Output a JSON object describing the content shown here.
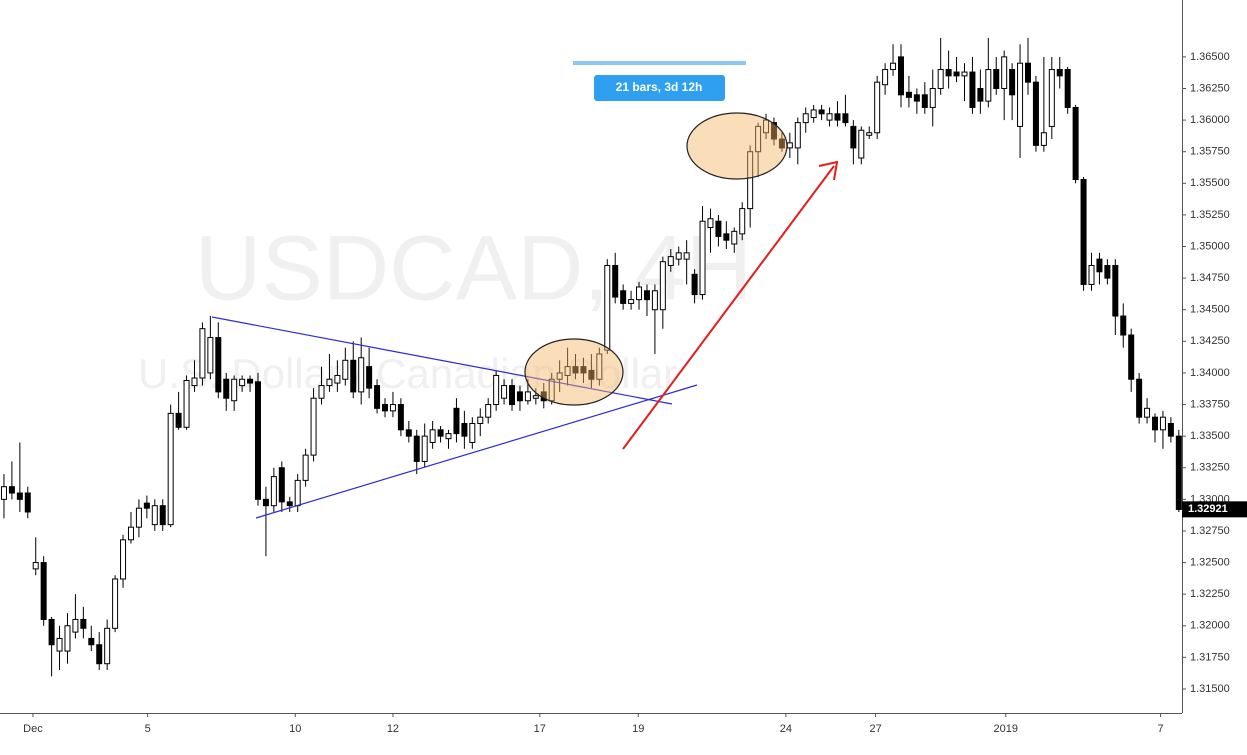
{
  "chart_data": {
    "type": "candlestick",
    "title": "USDCAD, 4H",
    "subtitle": "U.S. Dollar / Canadian Dollar",
    "measure_label": "21 bars, 3d 12h",
    "last_price": {
      "value": 1.32921,
      "label": "1.32921"
    },
    "up_color": "#ffffff",
    "down_color": "#000000",
    "wick_color": "#000000",
    "xlim": [
      -0.5,
      148.4
    ],
    "xticks": [
      {
        "value": 3.65,
        "label": "Dec"
      },
      {
        "value": 18.1,
        "label": "5"
      },
      {
        "value": 36.7,
        "label": "10"
      },
      {
        "value": 49.0,
        "label": "12"
      },
      {
        "value": 67.5,
        "label": "17"
      },
      {
        "value": 79.9,
        "label": "19"
      },
      {
        "value": 98.5,
        "label": "24"
      },
      {
        "value": 109.8,
        "label": "27"
      },
      {
        "value": 126.2,
        "label": "2019"
      },
      {
        "value": 145.7,
        "label": "7"
      }
    ],
    "ylim": [
      1.3131,
      1.3695
    ],
    "yticks": [
      {
        "value": 1.315,
        "label": "1.31500"
      },
      {
        "value": 1.3175,
        "label": "1.31750"
      },
      {
        "value": 1.32,
        "label": "1.32000"
      },
      {
        "value": 1.3225,
        "label": "1.32250"
      },
      {
        "value": 1.325,
        "label": "1.32500"
      },
      {
        "value": 1.3275,
        "label": "1.32750"
      },
      {
        "value": 1.33,
        "label": "1.33000"
      },
      {
        "value": 1.3325,
        "label": "1.33250"
      },
      {
        "value": 1.335,
        "label": "1.33500"
      },
      {
        "value": 1.3375,
        "label": "1.33750"
      },
      {
        "value": 1.34,
        "label": "1.34000"
      },
      {
        "value": 1.3425,
        "label": "1.34250"
      },
      {
        "value": 1.345,
        "label": "1.34500"
      },
      {
        "value": 1.3475,
        "label": "1.34750"
      },
      {
        "value": 1.35,
        "label": "1.35000"
      },
      {
        "value": 1.3525,
        "label": "1.35250"
      },
      {
        "value": 1.355,
        "label": "1.35500"
      },
      {
        "value": 1.3575,
        "label": "1.35750"
      },
      {
        "value": 1.36,
        "label": "1.36000"
      },
      {
        "value": 1.3625,
        "label": "1.36250"
      },
      {
        "value": 1.365,
        "label": "1.36500"
      }
    ],
    "ohlc": [
      [
        1.33,
        1.332,
        1.3285,
        1.331
      ],
      [
        1.331,
        1.333,
        1.33,
        1.3305
      ],
      [
        1.3305,
        1.3345,
        1.329,
        1.33
      ],
      [
        1.3305,
        1.331,
        1.3285,
        1.329
      ],
      [
        1.3245,
        1.327,
        1.324,
        1.325
      ],
      [
        1.325,
        1.3255,
        1.32,
        1.3205
      ],
      [
        1.3205,
        1.3207,
        1.316,
        1.3185
      ],
      [
        1.318,
        1.32,
        1.3165,
        1.319
      ],
      [
        1.318,
        1.321,
        1.317,
        1.32
      ],
      [
        1.3195,
        1.3225,
        1.319,
        1.3205
      ],
      [
        1.3205,
        1.3215,
        1.319,
        1.3198
      ],
      [
        1.319,
        1.32,
        1.318,
        1.3185
      ],
      [
        1.3185,
        1.3195,
        1.3165,
        1.317
      ],
      [
        1.317,
        1.3205,
        1.3165,
        1.3198
      ],
      [
        1.3198,
        1.324,
        1.3195,
        1.3237
      ],
      [
        1.3237,
        1.3272,
        1.323,
        1.3268
      ],
      [
        1.3268,
        1.329,
        1.3265,
        1.3278
      ],
      [
        1.3278,
        1.33,
        1.327,
        1.3293
      ],
      [
        1.3297,
        1.3303,
        1.3285,
        1.3293
      ],
      [
        1.328,
        1.33,
        1.3275,
        1.3295
      ],
      [
        1.3295,
        1.33,
        1.3275,
        1.328
      ],
      [
        1.328,
        1.3375,
        1.3278,
        1.3368
      ],
      [
        1.3368,
        1.3385,
        1.3355,
        1.3357
      ],
      [
        1.3357,
        1.3398,
        1.3355,
        1.3394
      ],
      [
        1.339,
        1.341,
        1.3385,
        1.3396
      ],
      [
        1.3396,
        1.344,
        1.339,
        1.3435
      ],
      [
        1.34,
        1.3445,
        1.3395,
        1.3428
      ],
      [
        1.3428,
        1.344,
        1.338,
        1.3385
      ],
      [
        1.3395,
        1.34,
        1.337,
        1.338
      ],
      [
        1.3378,
        1.3398,
        1.337,
        1.3395
      ],
      [
        1.339,
        1.3398,
        1.3385,
        1.3395
      ],
      [
        1.3395,
        1.3398,
        1.3385,
        1.3392
      ],
      [
        1.3393,
        1.34,
        1.3295,
        1.33
      ],
      [
        1.33,
        1.331,
        1.3255,
        1.3295
      ],
      [
        1.3295,
        1.3325,
        1.329,
        1.3318
      ],
      [
        1.3325,
        1.333,
        1.329,
        1.3298
      ],
      [
        1.3298,
        1.3302,
        1.329,
        1.3295
      ],
      [
        1.3295,
        1.332,
        1.329,
        1.3315
      ],
      [
        1.3315,
        1.334,
        1.331,
        1.3335
      ],
      [
        1.3335,
        1.3388,
        1.333,
        1.338
      ],
      [
        1.338,
        1.3405,
        1.3375,
        1.339
      ],
      [
        1.339,
        1.3415,
        1.3385,
        1.3395
      ],
      [
        1.3392,
        1.341,
        1.3385,
        1.3398
      ],
      [
        1.3395,
        1.342,
        1.339,
        1.341
      ],
      [
        1.341,
        1.3425,
        1.338,
        1.3385
      ],
      [
        1.3385,
        1.3428,
        1.3375,
        1.3412
      ],
      [
        1.3405,
        1.342,
        1.338,
        1.3388
      ],
      [
        1.339,
        1.3395,
        1.3368,
        1.3372
      ],
      [
        1.3375,
        1.338,
        1.3365,
        1.337
      ],
      [
        1.337,
        1.3385,
        1.3365,
        1.3375
      ],
      [
        1.3375,
        1.338,
        1.335,
        1.3355
      ],
      [
        1.3355,
        1.3362,
        1.3345,
        1.335
      ],
      [
        1.335,
        1.3355,
        1.332,
        1.333
      ],
      [
        1.333,
        1.336,
        1.3325,
        1.335
      ],
      [
        1.3345,
        1.3362,
        1.334,
        1.3355
      ],
      [
        1.3355,
        1.3358,
        1.3345,
        1.335
      ],
      [
        1.3348,
        1.3355,
        1.334,
        1.3352
      ],
      [
        1.3372,
        1.338,
        1.3345,
        1.3352
      ],
      [
        1.336,
        1.337,
        1.334,
        1.335
      ],
      [
        1.3345,
        1.3365,
        1.334,
        1.336
      ],
      [
        1.336,
        1.3372,
        1.335,
        1.3365
      ],
      [
        1.3365,
        1.338,
        1.336,
        1.3375
      ],
      [
        1.3375,
        1.3402,
        1.337,
        1.3398
      ],
      [
        1.338,
        1.3395,
        1.3375,
        1.339
      ],
      [
        1.339,
        1.3395,
        1.337,
        1.3375
      ],
      [
        1.3385,
        1.339,
        1.337,
        1.3378
      ],
      [
        1.3378,
        1.3395,
        1.3375,
        1.3385
      ],
      [
        1.338,
        1.3388,
        1.3375,
        1.3382
      ],
      [
        1.3385,
        1.3392,
        1.3372,
        1.3378
      ],
      [
        1.3378,
        1.34,
        1.3375,
        1.3395
      ],
      [
        1.3395,
        1.341,
        1.3385,
        1.34
      ],
      [
        1.3398,
        1.342,
        1.339,
        1.3405
      ],
      [
        1.3405,
        1.3415,
        1.3395,
        1.34
      ],
      [
        1.3405,
        1.3412,
        1.3392,
        1.34
      ],
      [
        1.3402,
        1.3415,
        1.3388,
        1.3395
      ],
      [
        1.3395,
        1.342,
        1.339,
        1.3415
      ],
      [
        1.3418,
        1.349,
        1.3415,
        1.3485
      ],
      [
        1.3485,
        1.3495,
        1.3455,
        1.346
      ],
      [
        1.3465,
        1.347,
        1.345,
        1.3455
      ],
      [
        1.3455,
        1.3465,
        1.345,
        1.3458
      ],
      [
        1.3458,
        1.3472,
        1.345,
        1.3468
      ],
      [
        1.3465,
        1.347,
        1.3445,
        1.3458
      ],
      [
        1.345,
        1.347,
        1.3415,
        1.3465
      ],
      [
        1.345,
        1.3492,
        1.3435,
        1.3488
      ],
      [
        1.3485,
        1.3498,
        1.348,
        1.3492
      ],
      [
        1.349,
        1.35,
        1.3485,
        1.3495
      ],
      [
        1.349,
        1.3505,
        1.347,
        1.3495
      ],
      [
        1.3478,
        1.3482,
        1.3455,
        1.3462
      ],
      [
        1.3462,
        1.3532,
        1.3458,
        1.352
      ],
      [
        1.3515,
        1.353,
        1.3495,
        1.3522
      ],
      [
        1.352,
        1.3525,
        1.35,
        1.3508
      ],
      [
        1.351,
        1.352,
        1.3498,
        1.3505
      ],
      [
        1.3502,
        1.3515,
        1.3495,
        1.3512
      ],
      [
        1.351,
        1.3535,
        1.3505,
        1.353
      ],
      [
        1.353,
        1.358,
        1.3515,
        1.3575
      ],
      [
        1.3575,
        1.3598,
        1.3555,
        1.3595
      ],
      [
        1.359,
        1.3605,
        1.3585,
        1.36
      ],
      [
        1.3598,
        1.3602,
        1.358,
        1.3585
      ],
      [
        1.3585,
        1.359,
        1.3575,
        1.3578
      ],
      [
        1.3578,
        1.359,
        1.357,
        1.3582
      ],
      [
        1.3578,
        1.3602,
        1.3565,
        1.3598
      ],
      [
        1.3598,
        1.361,
        1.359,
        1.3605
      ],
      [
        1.3602,
        1.3612,
        1.3598,
        1.3608
      ],
      [
        1.3608,
        1.3612,
        1.36,
        1.3605
      ],
      [
        1.36,
        1.361,
        1.3595,
        1.3605
      ],
      [
        1.3605,
        1.3615,
        1.3595,
        1.36
      ],
      [
        1.3605,
        1.362,
        1.3595,
        1.3598
      ],
      [
        1.3595,
        1.36,
        1.3565,
        1.3578
      ],
      [
        1.357,
        1.3595,
        1.3565,
        1.3592
      ],
      [
        1.3588,
        1.3595,
        1.3585,
        1.359
      ],
      [
        1.359,
        1.3635,
        1.3585,
        1.363
      ],
      [
        1.3628,
        1.3645,
        1.362,
        1.364
      ],
      [
        1.364,
        1.366,
        1.3635,
        1.3645
      ],
      [
        1.365,
        1.366,
        1.361,
        1.362
      ],
      [
        1.3622,
        1.3635,
        1.361,
        1.3618
      ],
      [
        1.362,
        1.3625,
        1.3605,
        1.3615
      ],
      [
        1.362,
        1.363,
        1.3605,
        1.361
      ],
      [
        1.361,
        1.364,
        1.3595,
        1.3625
      ],
      [
        1.3625,
        1.3665,
        1.362,
        1.364
      ],
      [
        1.364,
        1.3655,
        1.3625,
        1.3635
      ],
      [
        1.3638,
        1.365,
        1.363,
        1.3635
      ],
      [
        1.3635,
        1.3645,
        1.3615,
        1.3638
      ],
      [
        1.3638,
        1.365,
        1.3605,
        1.361
      ],
      [
        1.3625,
        1.364,
        1.3605,
        1.3615
      ],
      [
        1.3615,
        1.3665,
        1.361,
        1.364
      ],
      [
        1.364,
        1.365,
        1.362,
        1.3625
      ],
      [
        1.3625,
        1.3655,
        1.36,
        1.365
      ],
      [
        1.364,
        1.3645,
        1.36,
        1.362
      ],
      [
        1.3595,
        1.366,
        1.357,
        1.3645
      ],
      [
        1.3645,
        1.3665,
        1.362,
        1.363
      ],
      [
        1.363,
        1.3635,
        1.3575,
        1.358
      ],
      [
        1.358,
        1.365,
        1.3575,
        1.359
      ],
      [
        1.3595,
        1.365,
        1.3585,
        1.364
      ],
      [
        1.364,
        1.365,
        1.3625,
        1.3635
      ],
      [
        1.364,
        1.3642,
        1.3605,
        1.361
      ],
      [
        1.361,
        1.3612,
        1.355,
        1.3553
      ],
      [
        1.3553,
        1.3555,
        1.3465,
        1.347
      ],
      [
        1.347,
        1.3495,
        1.3465,
        1.3485
      ],
      [
        1.349,
        1.3495,
        1.347,
        1.348
      ],
      [
        1.3485,
        1.349,
        1.347,
        1.3475
      ],
      [
        1.3485,
        1.349,
        1.343,
        1.3445
      ],
      [
        1.3445,
        1.3455,
        1.342,
        1.343
      ],
      [
        1.343,
        1.3435,
        1.3385,
        1.3395
      ],
      [
        1.3395,
        1.34,
        1.336,
        1.3365
      ],
      [
        1.3365,
        1.338,
        1.336,
        1.3372
      ],
      [
        1.3365,
        1.3368,
        1.3345,
        1.3355
      ],
      [
        1.3355,
        1.337,
        1.334,
        1.3365
      ],
      [
        1.336,
        1.3365,
        1.3345,
        1.335
      ],
      [
        1.335,
        1.3355,
        1.329,
        1.3292
      ]
    ]
  }
}
